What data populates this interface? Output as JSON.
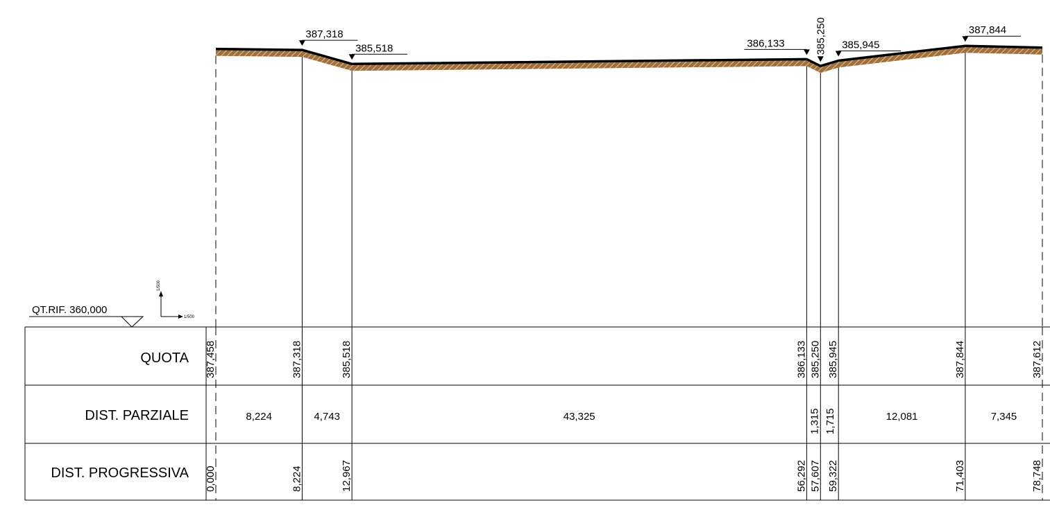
{
  "reference_level": {
    "label": "QT.RIF. 360,000"
  },
  "scale": {
    "vertical": "1/500",
    "horizontal": "1/500"
  },
  "rows": {
    "quota": "QUOTA",
    "parziale": "DIST. PARZIALE",
    "progressiva": "DIST. PROGRESSIVA"
  },
  "colors": {
    "terrain_fill": "#a0703c",
    "line": "#000000"
  },
  "stations": [
    {
      "progressiva": "0,000",
      "quota": "387,458",
      "elev": 387.458,
      "marker": false,
      "elev_label": ""
    },
    {
      "progressiva": "8,224",
      "quota": "387,318",
      "elev": 387.318,
      "marker": true,
      "elev_label": "387,318"
    },
    {
      "progressiva": "12,967",
      "quota": "385,518",
      "elev": 385.518,
      "marker": true,
      "elev_label": "385,518"
    },
    {
      "progressiva": "56,292",
      "quota": "386,133",
      "elev": 386.133,
      "marker": true,
      "elev_label": "386,133"
    },
    {
      "progressiva": "57,607",
      "quota": "385,250",
      "elev": 385.25,
      "marker": true,
      "elev_label": "385,250"
    },
    {
      "progressiva": "59,322",
      "quota": "385,945",
      "elev": 385.945,
      "marker": true,
      "elev_label": "385,945"
    },
    {
      "progressiva": "71,403",
      "quota": "387,844",
      "elev": 387.844,
      "marker": true,
      "elev_label": "387,844"
    },
    {
      "progressiva": "78,748",
      "quota": "387,612",
      "elev": 387.612,
      "marker": false,
      "elev_label": ""
    }
  ],
  "parziali": [
    "8,224",
    "4,743",
    "43,325",
    "1,315",
    "1,715",
    "12,081",
    "7,345"
  ]
}
